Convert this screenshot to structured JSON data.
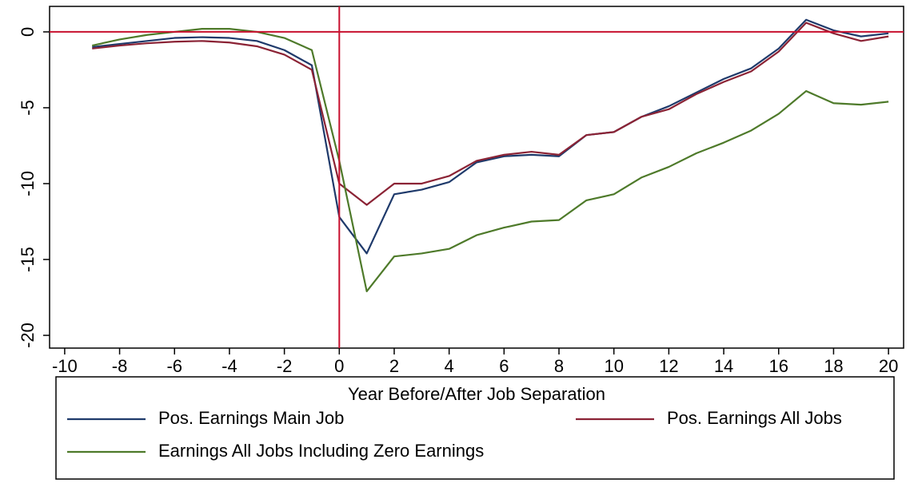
{
  "chart_data": {
    "type": "line",
    "xlabel": "Year Before/After Job Separation",
    "x": [
      -9,
      -8,
      -7,
      -6,
      -5,
      -4,
      -3,
      -2,
      -1,
      0,
      1,
      2,
      3,
      4,
      5,
      6,
      7,
      8,
      9,
      10,
      11,
      12,
      13,
      14,
      15,
      16,
      17,
      18,
      19,
      20
    ],
    "series": [
      {
        "name": "Pos. Earnings Main Job",
        "color": "#1f3a6b",
        "values": [
          -1.0,
          -0.8,
          -0.6,
          -0.4,
          -0.35,
          -0.4,
          -0.6,
          -1.2,
          -2.2,
          -12.2,
          -14.6,
          -10.7,
          -10.4,
          -9.9,
          -8.6,
          -8.2,
          -8.1,
          -8.2,
          -6.8,
          -6.6,
          -5.6,
          -4.9,
          -4.0,
          -3.1,
          -2.4,
          -1.1,
          0.8,
          0.1,
          -0.3,
          -0.1
        ]
      },
      {
        "name": "Pos. Earnings All Jobs",
        "color": "#8b2335",
        "values": [
          -1.1,
          -0.9,
          -0.75,
          -0.65,
          -0.6,
          -0.7,
          -0.95,
          -1.5,
          -2.5,
          -10.0,
          -11.4,
          -10.0,
          -10.0,
          -9.5,
          -8.5,
          -8.1,
          -7.9,
          -8.1,
          -6.8,
          -6.6,
          -5.6,
          -5.1,
          -4.1,
          -3.3,
          -2.6,
          -1.3,
          0.6,
          -0.1,
          -0.6,
          -0.3
        ]
      },
      {
        "name": "Earnings All Jobs Including Zero Earnings",
        "color": "#4e7a2a",
        "values": [
          -0.9,
          -0.5,
          -0.2,
          0.0,
          0.2,
          0.2,
          0.0,
          -0.4,
          -1.2,
          -8.5,
          -17.1,
          -14.8,
          -14.6,
          -14.3,
          -13.4,
          -12.9,
          -12.5,
          -12.4,
          -11.1,
          -10.7,
          -9.6,
          -8.9,
          -8.0,
          -7.3,
          -6.5,
          -5.4,
          -3.9,
          -4.7,
          -4.8,
          -4.6
        ]
      }
    ],
    "xlim": [
      -10.55,
      20.55
    ],
    "ylim": [
      -20.84,
      1.68
    ],
    "xticks": [
      -10,
      -8,
      -6,
      -4,
      -2,
      0,
      2,
      4,
      6,
      8,
      10,
      12,
      14,
      16,
      18,
      20
    ],
    "yticks": [
      0,
      -5,
      -10,
      -15,
      -20
    ],
    "reference_lines": {
      "x": 0,
      "y": 0,
      "color": "#c8102e"
    },
    "grid": false,
    "legend": "bottom"
  }
}
